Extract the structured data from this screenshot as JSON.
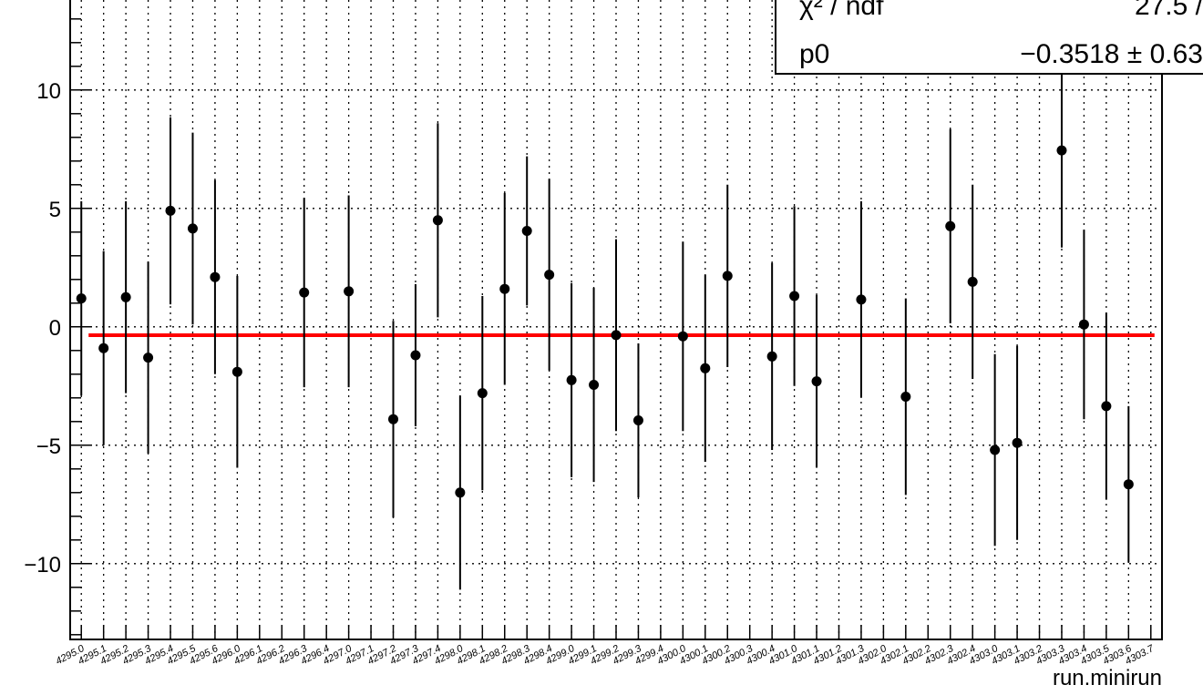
{
  "chart_data": {
    "type": "scatter",
    "title": "",
    "xlabel": "run.minirun",
    "ylabel": "",
    "ylim": [
      -13.2,
      13.8
    ],
    "y_ticks": [
      -10,
      -5,
      0,
      5,
      10
    ],
    "y_tick_labels": [
      "−10",
      "−5",
      "0",
      "5",
      "10"
    ],
    "grid": true,
    "fit_line": {
      "value": -0.3518,
      "color": "#ff0000"
    },
    "stats_box": {
      "rows": [
        {
          "label": "χ² / ndf",
          "value": "27.5 /"
        },
        {
          "label": "p0",
          "value": "−0.3518 ± 0.63"
        }
      ]
    },
    "categories": [
      "4295.0",
      "4295.1",
      "4295.2",
      "4295.3",
      "4295.4",
      "4295.5",
      "4295.6",
      "4296.0",
      "4296.1",
      "4296.2",
      "4296.3",
      "4296.4",
      "4297.0",
      "4297.1",
      "4297.2",
      "4297.3",
      "4297.4",
      "4298.0",
      "4298.1",
      "4298.2",
      "4298.3",
      "4298.4",
      "4299.0",
      "4299.1",
      "4299.2",
      "4299.3",
      "4299.4",
      "4300.0",
      "4300.1",
      "4300.2",
      "4300.3",
      "4300.4",
      "4301.0",
      "4301.1",
      "4301.2",
      "4301.3",
      "4302.0",
      "4302.1",
      "4302.2",
      "4302.3",
      "4302.4",
      "4303.0",
      "4303.1",
      "4303.2",
      "4303.3",
      "4303.4",
      "4303.5",
      "4303.6",
      "4303.7"
    ],
    "series": [
      {
        "marker_color": "#000000",
        "points": [
          {
            "i": 0,
            "y": 1.2,
            "err": 4.1
          },
          {
            "i": 1,
            "y": -0.9,
            "err": 4.1
          },
          {
            "i": 2,
            "y": 1.25,
            "err": 4.05
          },
          {
            "i": 3,
            "y": -1.3,
            "err": 4.05
          },
          {
            "i": 4,
            "y": 4.9,
            "err": 3.95
          },
          {
            "i": 5,
            "y": 4.15,
            "err": 4.05
          },
          {
            "i": 6,
            "y": 2.1,
            "err": 4.1
          },
          {
            "i": 7,
            "y": -1.9,
            "err": 4.05
          },
          {
            "i": 10,
            "y": 1.45,
            "err": 4.0
          },
          {
            "i": 12,
            "y": 1.5,
            "err": 4.05
          },
          {
            "i": 14,
            "y": -3.9,
            "err": 4.15
          },
          {
            "i": 15,
            "y": -1.2,
            "err": 3.0
          },
          {
            "i": 16,
            "y": 4.5,
            "err": 4.1
          },
          {
            "i": 17,
            "y": -7.0,
            "err": 4.1
          },
          {
            "i": 18,
            "y": -2.8,
            "err": 4.1
          },
          {
            "i": 19,
            "y": 1.6,
            "err": 4.05
          },
          {
            "i": 20,
            "y": 4.05,
            "err": 3.15
          },
          {
            "i": 21,
            "y": 2.2,
            "err": 4.05
          },
          {
            "i": 22,
            "y": -2.25,
            "err": 4.1
          },
          {
            "i": 23,
            "y": -2.45,
            "err": 4.1
          },
          {
            "i": 24,
            "y": -0.35,
            "err": 4.05
          },
          {
            "i": 25,
            "y": -3.95,
            "err": 3.25
          },
          {
            "i": 27,
            "y": -0.4,
            "err": 4.0
          },
          {
            "i": 28,
            "y": -1.75,
            "err": 3.95
          },
          {
            "i": 29,
            "y": 2.15,
            "err": 3.85
          },
          {
            "i": 31,
            "y": -1.25,
            "err": 3.95
          },
          {
            "i": 32,
            "y": 1.3,
            "err": 3.8
          },
          {
            "i": 33,
            "y": -2.3,
            "err": 3.65
          },
          {
            "i": 35,
            "y": 1.15,
            "err": 4.15
          },
          {
            "i": 37,
            "y": -2.95,
            "err": 4.15
          },
          {
            "i": 39,
            "y": 4.25,
            "err": 4.1
          },
          {
            "i": 40,
            "y": 1.9,
            "err": 4.1
          },
          {
            "i": 41,
            "y": -5.2,
            "err": 4.05
          },
          {
            "i": 42,
            "y": -4.9,
            "err": 4.1
          },
          {
            "i": 44,
            "y": 7.45,
            "err": 4.1
          },
          {
            "i": 45,
            "y": 0.1,
            "err": 4.0
          },
          {
            "i": 46,
            "y": -3.35,
            "err": 3.95
          },
          {
            "i": 47,
            "y": -6.65,
            "err": 3.3
          }
        ]
      }
    ]
  }
}
